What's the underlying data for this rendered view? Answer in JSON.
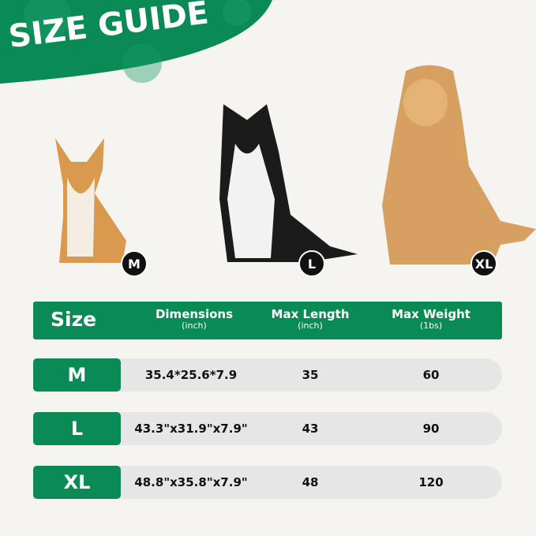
{
  "title": "SIZE GUIDE",
  "colors": {
    "accent": "#0a8a55",
    "row_bg": "#e6e6e6",
    "background": "#f5f4f1"
  },
  "dogs": [
    {
      "size": "M",
      "breed_image": "corgi"
    },
    {
      "size": "L",
      "breed_image": "border-collie"
    },
    {
      "size": "XL",
      "breed_image": "golden-retriever"
    }
  ],
  "table": {
    "headers": {
      "size": "Size",
      "dimensions": "Dimensions",
      "dimensions_unit": "(inch)",
      "length": "Max Length",
      "length_unit": "(inch)",
      "weight": "Max Weight",
      "weight_unit": "(1bs)"
    },
    "rows": [
      {
        "size": "M",
        "dimensions": "35.4*25.6*7.9",
        "length": "35",
        "weight": "60"
      },
      {
        "size": "L",
        "dimensions": "43.3\"x31.9\"x7.9\"",
        "length": "43",
        "weight": "90"
      },
      {
        "size": "XL",
        "dimensions": "48.8\"x35.8\"x7.9\"",
        "length": "48",
        "weight": "120"
      }
    ]
  }
}
